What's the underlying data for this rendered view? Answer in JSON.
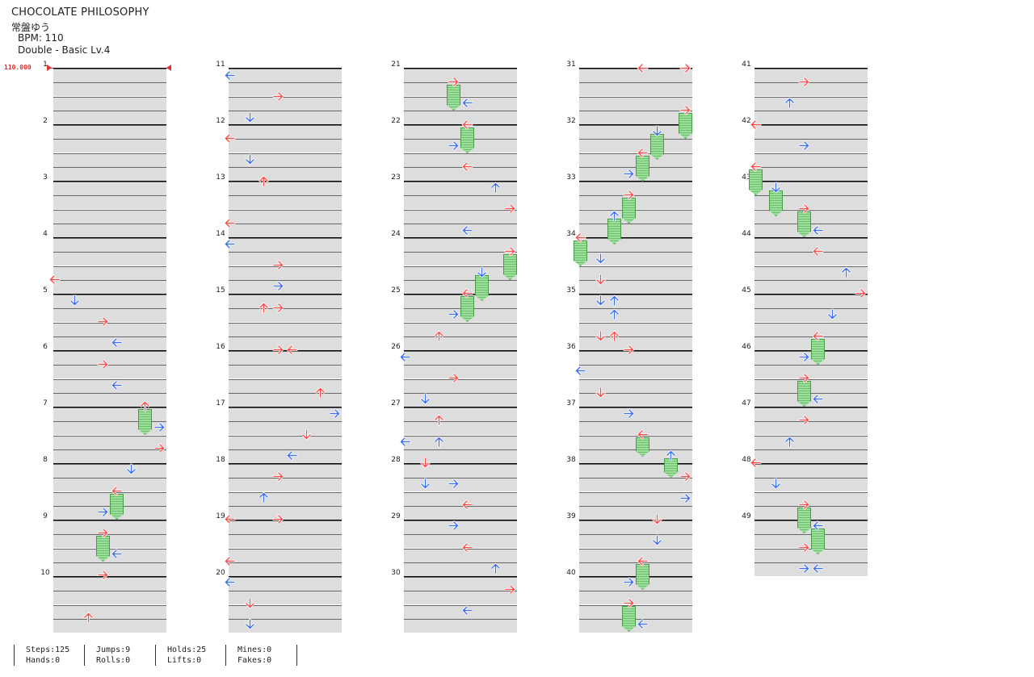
{
  "song": {
    "title": "CHOCOLATE PHILOSOPHY",
    "artist": "常盤ゆう",
    "bpm_line": "BPM: 110",
    "difficulty_line": "Double - Basic  Lv.4"
  },
  "bpm_change": {
    "label": "110.000",
    "color": "#e03030"
  },
  "colors": {
    "red_note": "#ff4a4a",
    "blue_note": "#3a6cf5",
    "hold": "#8fdc8f",
    "band": "#dddddd"
  },
  "measures": [
    "1",
    "2",
    "3",
    "4",
    "5",
    "6",
    "7",
    "8",
    "9",
    "10",
    "11",
    "12",
    "13",
    "14",
    "15",
    "16",
    "17",
    "18",
    "19",
    "20",
    "21",
    "22",
    "23",
    "24",
    "25",
    "26",
    "27",
    "28",
    "29",
    "30",
    "31",
    "32",
    "33",
    "34",
    "35",
    "36",
    "37",
    "38",
    "39",
    "40",
    "41",
    "42",
    "43",
    "44",
    "45",
    "46",
    "47",
    "48",
    "49"
  ],
  "stats": {
    "steps": "Steps:125",
    "hands": "Hands:0",
    "jumps": "Jumps:9",
    "rolls": "Rolls:0",
    "holds": "Holds:25",
    "lifts": "Lifts:0",
    "mines": "Mines:0",
    "fakes": "Fakes:0"
  }
}
